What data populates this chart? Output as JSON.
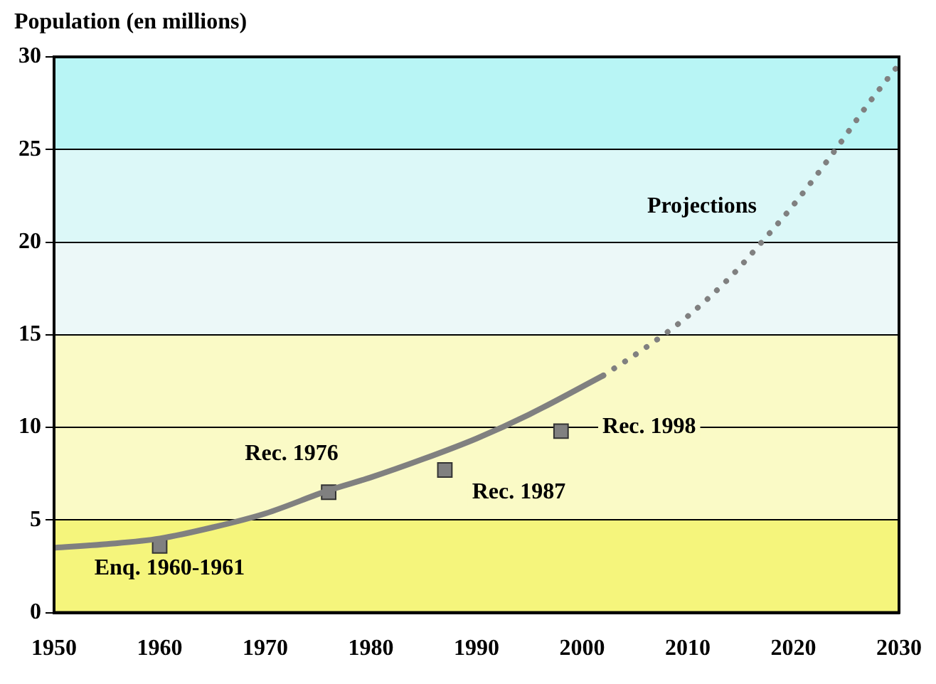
{
  "chart_data": {
    "type": "line",
    "ylabel": "Population (en millions)",
    "xlim": [
      1950,
      2030
    ],
    "xticks": [
      1950,
      1960,
      1970,
      1980,
      1990,
      2000,
      2010,
      2020,
      2030
    ],
    "ylim": [
      0,
      30
    ],
    "yticks": [
      0,
      5,
      10,
      15,
      20,
      25,
      30
    ],
    "grid": "y",
    "legend": false,
    "series": [
      {
        "color": "#808080",
        "line_style": "solid",
        "marker": "none",
        "x": [
          1950,
          1955,
          1960,
          1965,
          1970,
          1976,
          1980,
          1985,
          1990,
          1995,
          2002
        ],
        "values": [
          3.5,
          3.7,
          4.0,
          4.6,
          5.35,
          6.6,
          7.3,
          8.3,
          9.4,
          10.7,
          12.8
        ]
      },
      {
        "color": "#808080",
        "line_style": "dotted",
        "marker": "none",
        "x": [
          2002,
          2006,
          2010,
          2014,
          2017,
          2020,
          2024,
          2027,
          2030
        ],
        "values": [
          12.8,
          14.3,
          16,
          18.1,
          20,
          22,
          25,
          27.4,
          29.6
        ]
      },
      {
        "type": "scatter",
        "color": "#808080",
        "marker": "square",
        "x": [
          1960,
          1976,
          1987,
          1998
        ],
        "values": [
          3.6,
          6.5,
          7.7,
          9.8
        ]
      }
    ],
    "bands": [
      {
        "axis": "y",
        "from": 0,
        "to": 5,
        "color": "#f5f57c"
      },
      {
        "axis": "y",
        "from": 5,
        "to": 15,
        "color": "#fafac6"
      },
      {
        "axis": "y",
        "from": 15,
        "to": 20,
        "color": "#ecf8f8"
      },
      {
        "axis": "y",
        "from": 20,
        "to": 25,
        "color": "#dcf8f8"
      },
      {
        "axis": "y",
        "from": 25,
        "to": 30,
        "color": "#b8f5f5"
      }
    ],
    "annotations": [
      {
        "text": "Enq. 1960-1961",
        "x": 1960,
        "y": 3.6
      },
      {
        "text": "Rec. 1976",
        "x": 1976,
        "y": 6.5
      },
      {
        "text": "Rec. 1987",
        "x": 1987,
        "y": 7.7
      },
      {
        "text": "Rec. 1998",
        "x": 1998,
        "y": 9.8
      },
      {
        "text": "Projections",
        "x": 2017,
        "y": 20
      }
    ]
  }
}
